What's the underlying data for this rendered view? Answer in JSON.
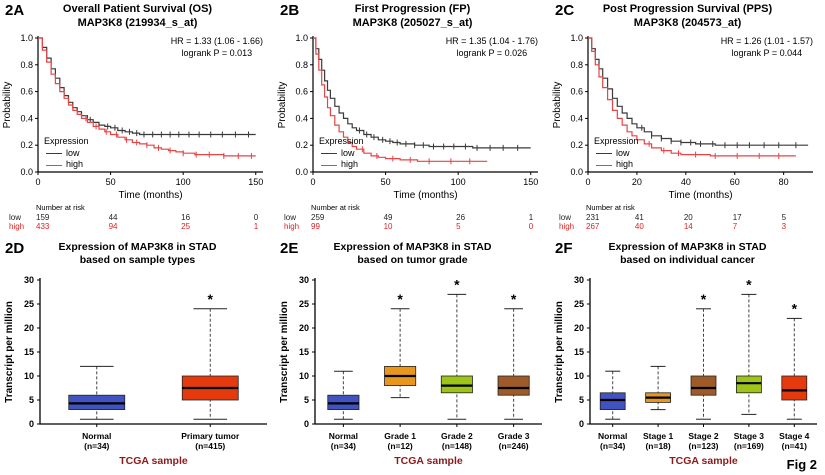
{
  "figure_label": "Fig 2",
  "chart_data": [
    {
      "type": "line",
      "subtype": "kaplan_meier",
      "panel_label": "2A",
      "title": "Overall Patient Survival (OS)",
      "subtitle": "MAP3K8 (219934_s_at)",
      "hr_text": "HR = 1.33 (1.06 - 1.66)",
      "logrank_text": "logrank P = 0.013",
      "xlabel": "Time (months)",
      "ylabel": "Probability",
      "xlim": [
        0,
        155
      ],
      "ylim": [
        0,
        1
      ],
      "xticks": [
        0,
        50,
        100,
        150
      ],
      "yticks": [
        0,
        0.2,
        0.4,
        0.6,
        0.8,
        1
      ],
      "legend_title": "Expression",
      "series": [
        {
          "name": "low",
          "color": "#3a3a3a",
          "points": [
            [
              0,
              1
            ],
            [
              3,
              0.93
            ],
            [
              6,
              0.85
            ],
            [
              9,
              0.77
            ],
            [
              12,
              0.7
            ],
            [
              15,
              0.63
            ],
            [
              18,
              0.57
            ],
            [
              21,
              0.52
            ],
            [
              24,
              0.48
            ],
            [
              27,
              0.45
            ],
            [
              30,
              0.42
            ],
            [
              34,
              0.39
            ],
            [
              38,
              0.37
            ],
            [
              42,
              0.35
            ],
            [
              46,
              0.34
            ],
            [
              50,
              0.33
            ],
            [
              55,
              0.31
            ],
            [
              60,
              0.3
            ],
            [
              65,
              0.29
            ],
            [
              70,
              0.28
            ],
            [
              150,
              0.28
            ]
          ],
          "censor_times": [
            30,
            36,
            42,
            48,
            53,
            58,
            63,
            68,
            73,
            79,
            85,
            91,
            97,
            104,
            111,
            119,
            127,
            136,
            145
          ]
        },
        {
          "name": "high",
          "color": "#e64545",
          "points": [
            [
              0,
              1
            ],
            [
              3,
              0.91
            ],
            [
              6,
              0.82
            ],
            [
              9,
              0.73
            ],
            [
              12,
              0.66
            ],
            [
              15,
              0.6
            ],
            [
              18,
              0.55
            ],
            [
              21,
              0.5
            ],
            [
              24,
              0.46
            ],
            [
              27,
              0.43
            ],
            [
              30,
              0.4
            ],
            [
              34,
              0.37
            ],
            [
              38,
              0.34
            ],
            [
              42,
              0.32
            ],
            [
              46,
              0.3
            ],
            [
              50,
              0.28
            ],
            [
              55,
              0.26
            ],
            [
              60,
              0.24
            ],
            [
              65,
              0.22
            ],
            [
              70,
              0.21
            ],
            [
              75,
              0.2
            ],
            [
              80,
              0.18
            ],
            [
              85,
              0.17
            ],
            [
              90,
              0.16
            ],
            [
              95,
              0.15
            ],
            [
              100,
              0.14
            ],
            [
              108,
              0.13
            ],
            [
              120,
              0.13
            ],
            [
              128,
              0.12
            ],
            [
              150,
              0.12
            ]
          ],
          "censor_times": [
            33,
            40,
            47,
            54,
            61,
            68,
            75,
            83,
            91,
            100,
            109,
            118,
            128,
            138,
            147
          ]
        }
      ],
      "number_at_risk": {
        "label": "Number at risk",
        "times": [
          0,
          50,
          100,
          150
        ],
        "rows": [
          {
            "name": "low",
            "color": "#222222",
            "values": [
              159,
              44,
              16,
              0
            ]
          },
          {
            "name": "high",
            "color": "#dd2222",
            "values": [
              433,
              94,
              25,
              1
            ]
          }
        ]
      }
    },
    {
      "type": "line",
      "subtype": "kaplan_meier",
      "panel_label": "2B",
      "title": "First Progression (FP)",
      "subtitle": "MAP3K8 (205027_s_at)",
      "hr_text": "HR = 1.35 (1.04 - 1.76)",
      "logrank_text": "logrank P = 0.026",
      "xlabel": "Time (months)",
      "ylabel": "Probability",
      "xlim": [
        0,
        155
      ],
      "ylim": [
        0,
        1
      ],
      "xticks": [
        0,
        50,
        100,
        150
      ],
      "yticks": [
        0,
        0.2,
        0.4,
        0.6,
        0.8,
        1
      ],
      "legend_title": "Expression",
      "series": [
        {
          "name": "low",
          "color": "#3a3a3a",
          "points": [
            [
              0,
              1
            ],
            [
              2,
              0.92
            ],
            [
              4,
              0.84
            ],
            [
              6,
              0.76
            ],
            [
              8,
              0.68
            ],
            [
              10,
              0.61
            ],
            [
              12,
              0.55
            ],
            [
              15,
              0.49
            ],
            [
              18,
              0.44
            ],
            [
              21,
              0.4
            ],
            [
              24,
              0.36
            ],
            [
              27,
              0.33
            ],
            [
              30,
              0.31
            ],
            [
              35,
              0.28
            ],
            [
              40,
              0.26
            ],
            [
              45,
              0.24
            ],
            [
              50,
              0.23
            ],
            [
              55,
              0.22
            ],
            [
              60,
              0.21
            ],
            [
              70,
              0.2
            ],
            [
              80,
              0.19
            ],
            [
              95,
              0.19
            ],
            [
              110,
              0.18
            ],
            [
              150,
              0.18
            ]
          ],
          "censor_times": [
            32,
            37,
            42,
            48,
            53,
            58,
            64,
            70,
            76,
            83,
            90,
            97,
            105,
            113,
            122,
            131,
            141
          ]
        },
        {
          "name": "high",
          "color": "#e64545",
          "points": [
            [
              0,
              1
            ],
            [
              2,
              0.88
            ],
            [
              4,
              0.76
            ],
            [
              6,
              0.65
            ],
            [
              8,
              0.56
            ],
            [
              10,
              0.48
            ],
            [
              12,
              0.42
            ],
            [
              15,
              0.35
            ],
            [
              18,
              0.3
            ],
            [
              21,
              0.26
            ],
            [
              24,
              0.22
            ],
            [
              27,
              0.19
            ],
            [
              30,
              0.17
            ],
            [
              35,
              0.14
            ],
            [
              40,
              0.12
            ],
            [
              45,
              0.11
            ],
            [
              50,
              0.1
            ],
            [
              60,
              0.09
            ],
            [
              72,
              0.08
            ],
            [
              120,
              0.08
            ]
          ],
          "censor_times": [
            34,
            44,
            55,
            67,
            80,
            95,
            108
          ]
        }
      ],
      "number_at_risk": {
        "label": "Number at risk",
        "times": [
          0,
          50,
          100,
          150
        ],
        "rows": [
          {
            "name": "low",
            "color": "#222222",
            "values": [
              259,
              49,
              26,
              1
            ]
          },
          {
            "name": "high",
            "color": "#dd2222",
            "values": [
              99,
              10,
              5,
              0
            ]
          }
        ]
      }
    },
    {
      "type": "line",
      "subtype": "kaplan_meier",
      "panel_label": "2C",
      "title": "Post Progression Survival (PPS)",
      "subtitle": "MAP3K8 (204573_at)",
      "hr_text": "HR = 1.26 (1.01 - 1.57)",
      "logrank_text": "logrank P = 0.044",
      "xlabel": "Time (months)",
      "ylabel": "Probability",
      "xlim": [
        0,
        92
      ],
      "ylim": [
        0,
        1
      ],
      "xticks": [
        0,
        20,
        40,
        60,
        80
      ],
      "yticks": [
        0,
        0.2,
        0.4,
        0.6,
        0.8,
        1
      ],
      "legend_title": "Expression",
      "series": [
        {
          "name": "low",
          "color": "#3a3a3a",
          "points": [
            [
              0,
              1
            ],
            [
              1.5,
              0.92
            ],
            [
              3,
              0.84
            ],
            [
              4.5,
              0.77
            ],
            [
              6,
              0.7
            ],
            [
              8,
              0.62
            ],
            [
              10,
              0.55
            ],
            [
              12,
              0.49
            ],
            [
              14,
              0.44
            ],
            [
              16,
              0.4
            ],
            [
              18,
              0.36
            ],
            [
              20,
              0.33
            ],
            [
              23,
              0.3
            ],
            [
              26,
              0.27
            ],
            [
              30,
              0.25
            ],
            [
              34,
              0.23
            ],
            [
              38,
              0.22
            ],
            [
              44,
              0.21
            ],
            [
              52,
              0.2
            ],
            [
              90,
              0.2
            ]
          ],
          "censor_times": [
            22,
            26,
            30,
            34,
            38,
            42,
            46,
            51,
            56,
            61,
            66,
            72,
            78,
            85
          ]
        },
        {
          "name": "high",
          "color": "#e64545",
          "points": [
            [
              0,
              1
            ],
            [
              1.5,
              0.9
            ],
            [
              3,
              0.8
            ],
            [
              4.5,
              0.71
            ],
            [
              6,
              0.63
            ],
            [
              8,
              0.54
            ],
            [
              10,
              0.46
            ],
            [
              12,
              0.4
            ],
            [
              14,
              0.35
            ],
            [
              16,
              0.3
            ],
            [
              18,
              0.27
            ],
            [
              20,
              0.24
            ],
            [
              23,
              0.21
            ],
            [
              26,
              0.18
            ],
            [
              30,
              0.16
            ],
            [
              34,
              0.14
            ],
            [
              38,
              0.13
            ],
            [
              44,
              0.13
            ],
            [
              50,
              0.12
            ],
            [
              85,
              0.12
            ]
          ],
          "censor_times": [
            25,
            31,
            37,
            44,
            52,
            61,
            70,
            78
          ]
        }
      ],
      "number_at_risk": {
        "label": "Number at risk",
        "times": [
          0,
          20,
          40,
          60,
          80
        ],
        "rows": [
          {
            "name": "low",
            "color": "#222222",
            "values": [
              231,
              41,
              20,
              17,
              5
            ]
          },
          {
            "name": "high",
            "color": "#dd2222",
            "values": [
              267,
              40,
              14,
              7,
              3
            ]
          }
        ]
      }
    },
    {
      "type": "box",
      "panel_label": "2D",
      "title": "Expression of MAP3K8 in STAD",
      "subtitle": "based on sample types",
      "xlabel": "TCGA sample",
      "xlabel_color": "#8b1a1a",
      "ylabel": "Transcript per million",
      "ylim": [
        0,
        30
      ],
      "yticks": [
        0,
        5,
        10,
        15,
        20,
        25,
        30
      ],
      "significance_marker": "*",
      "boxes": [
        {
          "label": "Normal",
          "n_label": "(n=34)",
          "color": "#4053c0",
          "whisker_low": 1,
          "q1": 3,
          "median": 4.3,
          "q3": 6,
          "whisker_high": 12,
          "star": false
        },
        {
          "label": "Primary tumor",
          "n_label": "(n=415)",
          "color": "#e5390e",
          "whisker_low": 1,
          "q1": 5,
          "median": 7.5,
          "q3": 10,
          "whisker_high": 24,
          "star": true
        }
      ]
    },
    {
      "type": "box",
      "panel_label": "2E",
      "title": "Expression of MAP3K8 in STAD",
      "subtitle": "based on tumor grade",
      "xlabel": "TCGA sample",
      "xlabel_color": "#8b1a1a",
      "ylabel": "Transcript per million",
      "ylim": [
        0,
        30
      ],
      "yticks": [
        0,
        5,
        10,
        15,
        20,
        25,
        30
      ],
      "significance_marker": "*",
      "boxes": [
        {
          "label": "Normal",
          "n_label": "(n=34)",
          "color": "#4053c0",
          "whisker_low": 1,
          "q1": 3,
          "median": 4.3,
          "q3": 6,
          "whisker_high": 11,
          "star": false
        },
        {
          "label": "Grade 1",
          "n_label": "(n=12)",
          "color": "#e8971c",
          "whisker_low": 5.5,
          "q1": 8,
          "median": 10,
          "q3": 12,
          "whisker_high": 24,
          "star": true
        },
        {
          "label": "Grade 2",
          "n_label": "(n=148)",
          "color": "#9ec41a",
          "whisker_low": 1,
          "q1": 6.5,
          "median": 8,
          "q3": 10,
          "whisker_high": 27,
          "star": true
        },
        {
          "label": "Grade 3",
          "n_label": "(n=246)",
          "color": "#9e5a28",
          "whisker_low": 1,
          "q1": 6,
          "median": 7.5,
          "q3": 10,
          "whisker_high": 24,
          "star": true
        }
      ]
    },
    {
      "type": "box",
      "panel_label": "2F",
      "title": "Expression of MAP3K8 in STAD",
      "subtitle": "based on individual cancer",
      "xlabel": "TCGA sample",
      "xlabel_color": "#8b1a1a",
      "ylabel": "Transcript per million",
      "ylim": [
        0,
        30
      ],
      "yticks": [
        0,
        5,
        10,
        15,
        20,
        25,
        30
      ],
      "significance_marker": "*",
      "boxes": [
        {
          "label": "Normal",
          "n_label": "(n=34)",
          "color": "#4053c0",
          "whisker_low": 1,
          "q1": 3,
          "median": 5,
          "q3": 6.5,
          "whisker_high": 11,
          "star": false
        },
        {
          "label": "Stage 1",
          "n_label": "(n=18)",
          "color": "#e8971c",
          "whisker_low": 3,
          "q1": 4.5,
          "median": 5.5,
          "q3": 6.5,
          "whisker_high": 12,
          "star": false
        },
        {
          "label": "Stage 2",
          "n_label": "(n=123)",
          "color": "#9e5a28",
          "whisker_low": 1,
          "q1": 6,
          "median": 7.5,
          "q3": 10,
          "whisker_high": 24,
          "star": true
        },
        {
          "label": "Stage 3",
          "n_label": "(n=169)",
          "color": "#9ec41a",
          "whisker_low": 2,
          "q1": 6.5,
          "median": 8.5,
          "q3": 10,
          "whisker_high": 27,
          "star": true
        },
        {
          "label": "Stage 4",
          "n_label": "(n=41)",
          "color": "#e5390e",
          "whisker_low": 1,
          "q1": 5,
          "median": 7,
          "q3": 10,
          "whisker_high": 22,
          "star": true
        }
      ]
    }
  ]
}
